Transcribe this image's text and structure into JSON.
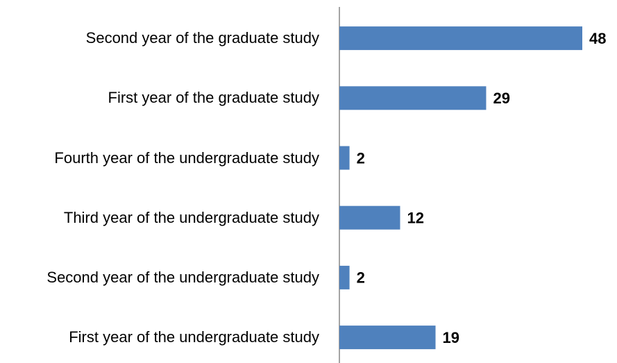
{
  "chart_data": {
    "type": "bar",
    "orientation": "horizontal",
    "categories": [
      "Second year of the graduate study",
      "First year of the graduate study",
      "Fourth year of the undergraduate study",
      "Third year of the undergraduate study",
      "Second year of the undergraduate study",
      "First year of the undergraduate study"
    ],
    "values": [
      48,
      29,
      2,
      12,
      2,
      19
    ],
    "color": "#4f81bd"
  }
}
